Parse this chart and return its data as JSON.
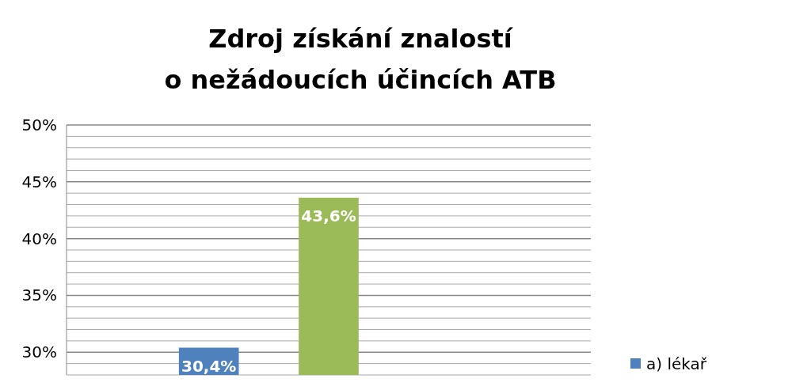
{
  "chart_data": {
    "type": "bar",
    "title": "Zdroj získání znalostí\no nežádoucích účincích ATB",
    "categories": [
      null
    ],
    "series": [
      {
        "name": "a) lékař",
        "color": "#4f81bd",
        "values": [
          30.4
        ],
        "value_labels": [
          "30,4%"
        ]
      },
      {
        "color": "#9bbb59",
        "values": [
          43.6
        ],
        "value_labels": [
          "43,6%"
        ]
      }
    ],
    "ylim": [
      28,
      50
    ],
    "yticks": [
      {
        "value": 28,
        "label": null
      },
      {
        "value": 29,
        "label": null
      },
      "30%",
      {
        "value": 31,
        "label": null
      },
      {
        "value": 32,
        "label": null
      },
      {
        "value": 33,
        "label": null
      },
      {
        "value": 34,
        "label": null
      },
      {
        "value": 35,
        "label": "35%"
      },
      {
        "value": 36,
        "label": null
      },
      {
        "value": 37,
        "label": null
      },
      {
        "value": 38,
        "label": null
      },
      {
        "value": 39,
        "label": null
      },
      {
        "value": 40,
        "label": "40%"
      },
      {
        "value": 41,
        "label": null
      },
      {
        "value": 42,
        "label": null
      },
      {
        "value": 43,
        "label": null
      },
      {
        "value": 44,
        "label": null
      },
      {
        "value": 45,
        "label": "45%"
      },
      {
        "value": 46,
        "label": null
      },
      {
        "value": 47,
        "label": null
      },
      {
        "value": 48,
        "label": null
      },
      {
        "value": 49,
        "label": null
      },
      {
        "value": 50,
        "label": "50%"
      }
    ],
    "grid": true,
    "legend": "right"
  }
}
